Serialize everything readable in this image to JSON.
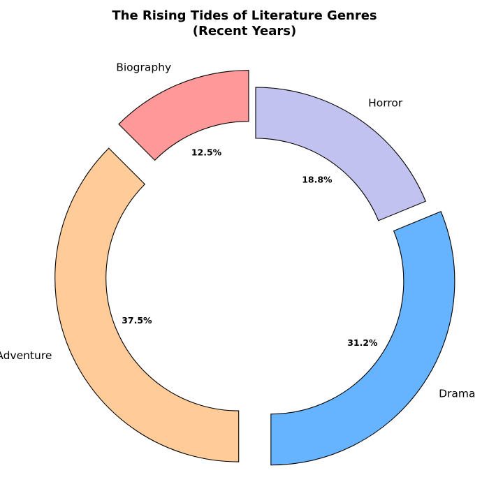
{
  "chart_data": {
    "type": "pie",
    "title": "The Rising Tides of Literature Genres",
    "subtitle": "(Recent Years)",
    "categories": [
      "Drama",
      "Horror",
      "Biography",
      "Adventure"
    ],
    "values": [
      31.2,
      18.8,
      12.5,
      37.5
    ],
    "percent_labels": [
      "31.2%",
      "18.8%",
      "12.5%",
      "37.5%"
    ],
    "colors": [
      "#66b3ff",
      "#c2c2f0",
      "#ff9999",
      "#ffcc99"
    ],
    "exploded": [
      true,
      false,
      true,
      true
    ],
    "style": "donut",
    "shadow": true,
    "legend": "none",
    "grid": false
  }
}
